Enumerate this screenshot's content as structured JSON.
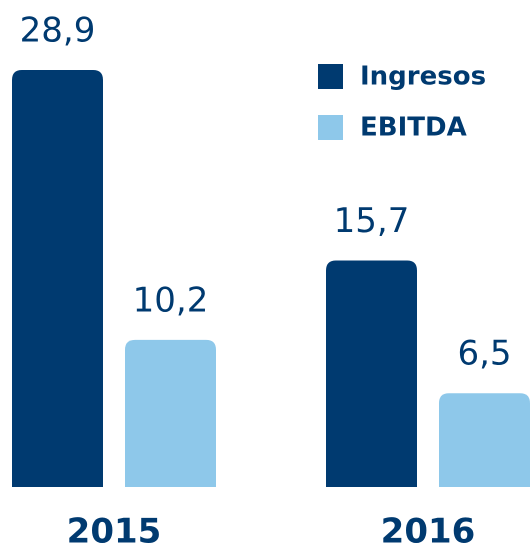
{
  "chart_data": {
    "type": "bar",
    "categories": [
      "2015",
      "2016"
    ],
    "series": [
      {
        "name": "Ingresos",
        "color": "#003a70",
        "values": [
          28.9,
          15.7
        ],
        "value_labels": [
          "28,9",
          "15,7"
        ]
      },
      {
        "name": "EBITDA",
        "color": "#8ec8ea",
        "values": [
          10.2,
          6.5
        ],
        "value_labels": [
          "10,2",
          "6,5"
        ]
      }
    ],
    "ylim": [
      0,
      28.9
    ],
    "legend": "upper right"
  }
}
